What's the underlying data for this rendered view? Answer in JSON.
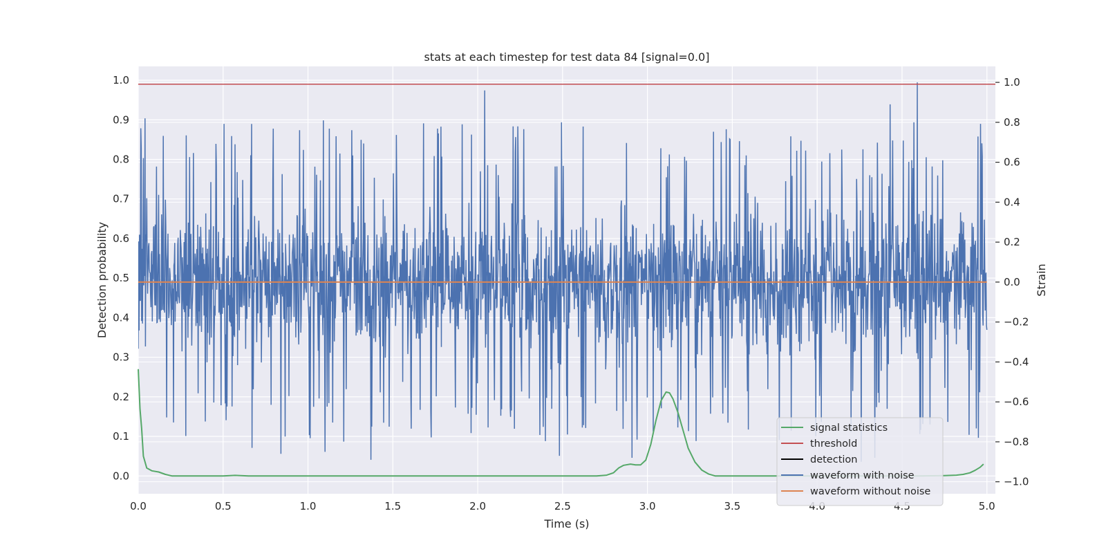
{
  "chart_data": {
    "type": "line",
    "title": "stats at each timestep for test data 84 [signal=0.0]",
    "xlabel": "Time (s)",
    "ylabel": "Detection probability",
    "ylabel_right": "Strain",
    "xlim": [
      0.0,
      5.05
    ],
    "ylim": [
      -0.045,
      1.035
    ],
    "ylim_right": [
      -1.06,
      1.08
    ],
    "x_ticks": [
      0.0,
      0.5,
      1.0,
      1.5,
      2.0,
      2.5,
      3.0,
      3.5,
      4.0,
      4.5,
      5.0
    ],
    "x_tick_labels": [
      "0.0",
      "0.5",
      "1.0",
      "1.5",
      "2.0",
      "2.5",
      "3.0",
      "3.5",
      "4.0",
      "4.5",
      "5.0"
    ],
    "y_ticks": [
      0.0,
      0.1,
      0.2,
      0.3,
      0.4,
      0.5,
      0.6,
      0.7,
      0.8,
      0.9,
      1.0
    ],
    "y_tick_labels": [
      "0.0",
      "0.1",
      "0.2",
      "0.3",
      "0.4",
      "0.5",
      "0.6",
      "0.7",
      "0.8",
      "0.9",
      "1.0"
    ],
    "y_right_ticks": [
      -1.0,
      -0.8,
      -0.6,
      -0.4,
      -0.2,
      0.0,
      0.2,
      0.4,
      0.6,
      0.8,
      1.0
    ],
    "y_right_tick_labels": [
      "−1.0",
      "−0.8",
      "−0.6",
      "−0.4",
      "−0.2",
      "0.0",
      "0.2",
      "0.4",
      "0.6",
      "0.8",
      "1.0"
    ],
    "grid": true,
    "legend_position": "lower-right",
    "legend": [
      {
        "label": "signal statistics",
        "color": "#55a868"
      },
      {
        "label": "threshold",
        "color": "#c44e52"
      },
      {
        "label": "detection",
        "color": "#000000"
      },
      {
        "label": "waveform with noise",
        "color": "#4c72b0"
      },
      {
        "label": "waveform without noise",
        "color": "#dd8452"
      }
    ],
    "series": [
      {
        "name": "signal statistics",
        "axis": "left",
        "color": "#55a868",
        "x": [
          0.0,
          0.01,
          0.02,
          0.03,
          0.05,
          0.08,
          0.12,
          0.16,
          0.2,
          0.25,
          0.3,
          0.4,
          0.5,
          0.57,
          0.65,
          0.8,
          1.0,
          1.5,
          2.0,
          2.5,
          2.7,
          2.76,
          2.8,
          2.83,
          2.86,
          2.9,
          2.93,
          2.96,
          2.99,
          3.02,
          3.05,
          3.08,
          3.11,
          3.13,
          3.15,
          3.18,
          3.21,
          3.24,
          3.28,
          3.32,
          3.36,
          3.4,
          3.45,
          3.5,
          3.6,
          3.7,
          3.8,
          4.0,
          4.3,
          4.6,
          4.75,
          4.82,
          4.86,
          4.9,
          4.93,
          4.96,
          4.98
        ],
        "y": [
          0.27,
          0.17,
          0.12,
          0.05,
          0.02,
          0.013,
          0.01,
          0.004,
          0.0,
          0.0,
          0.0,
          0.0,
          0.0,
          0.0015,
          0.0,
          0.0,
          0.0,
          0.0,
          0.0,
          0.0,
          0.0,
          0.002,
          0.008,
          0.02,
          0.027,
          0.03,
          0.028,
          0.028,
          0.04,
          0.08,
          0.14,
          0.19,
          0.212,
          0.21,
          0.195,
          0.16,
          0.115,
          0.07,
          0.035,
          0.015,
          0.005,
          0.0,
          0.0,
          0.0,
          0.0,
          0.0,
          0.0,
          0.0,
          0.0,
          0.0,
          0.001,
          0.002,
          0.004,
          0.008,
          0.014,
          0.022,
          0.03
        ]
      },
      {
        "name": "threshold",
        "axis": "left",
        "color": "#c44e52",
        "x": [
          0.0,
          5.05
        ],
        "y": [
          0.99,
          0.99
        ]
      },
      {
        "name": "waveform with noise",
        "axis": "right",
        "color": "#4c72b0",
        "samples": 2000,
        "x_range": [
          0.0,
          5.0
        ],
        "typical_envelope": [
          -0.62,
          0.62
        ],
        "peak_points": [
          {
            "x": 0.04,
            "y": 0.82
          },
          {
            "x": 0.46,
            "y": 0.58
          },
          {
            "x": 0.57,
            "y": 0.69
          },
          {
            "x": 0.67,
            "y": -0.83
          },
          {
            "x": 0.84,
            "y": -0.86
          },
          {
            "x": 1.09,
            "y": 0.81
          },
          {
            "x": 1.1,
            "y": -0.85
          },
          {
            "x": 1.37,
            "y": -0.89
          },
          {
            "x": 2.04,
            "y": 0.96
          },
          {
            "x": 2.48,
            "y": -0.87
          },
          {
            "x": 2.91,
            "y": -0.88
          },
          {
            "x": 3.08,
            "y": 0.67
          },
          {
            "x": 4.26,
            "y": -0.9
          },
          {
            "x": 4.34,
            "y": -0.88
          },
          {
            "x": 4.43,
            "y": 0.89
          },
          {
            "x": 4.59,
            "y": 1.0
          },
          {
            "x": 4.57,
            "y": 0.8
          },
          {
            "x": 4.61,
            "y": -0.74
          },
          {
            "x": 4.74,
            "y": 0.61
          },
          {
            "x": 4.95,
            "y": -0.78
          }
        ]
      },
      {
        "name": "waveform without noise",
        "axis": "right",
        "color": "#dd8452",
        "x": [
          0.0,
          5.0
        ],
        "y": [
          0.0,
          0.0
        ]
      }
    ]
  }
}
